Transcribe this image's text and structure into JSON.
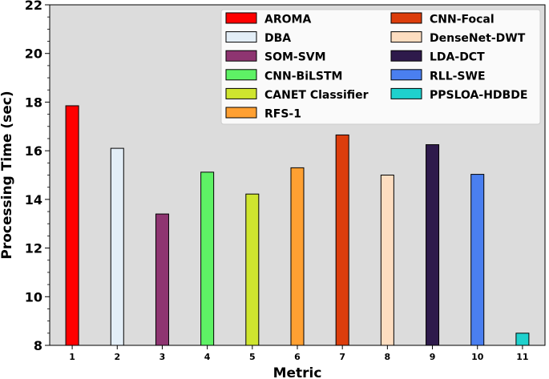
{
  "chart_data": {
    "type": "bar",
    "xlabel": "Metric",
    "ylabel": "Processing Time (sec)",
    "categories": [
      "1",
      "2",
      "3",
      "4",
      "5",
      "6",
      "7",
      "8",
      "9",
      "10",
      "11"
    ],
    "series": [
      {
        "name": "AROMA",
        "category": "1",
        "value": 17.85,
        "color": "#ff0000"
      },
      {
        "name": "DBA",
        "category": "2",
        "value": 16.1,
        "color": "#e3eef7"
      },
      {
        "name": "SOM-SVM",
        "category": "3",
        "value": 13.4,
        "color": "#8e3571"
      },
      {
        "name": "CNN-BiLSTM",
        "category": "4",
        "value": 15.12,
        "color": "#5ef265"
      },
      {
        "name": "CANET Classifier",
        "category": "5",
        "value": 14.22,
        "color": "#cfe52f"
      },
      {
        "name": "RFS-1",
        "category": "6",
        "value": 15.3,
        "color": "#ffa032"
      },
      {
        "name": "CNN-Focal",
        "category": "7",
        "value": 16.65,
        "color": "#dc3d0c"
      },
      {
        "name": "DenseNet-DWT",
        "category": "8",
        "value": 15.0,
        "color": "#fdddc0"
      },
      {
        "name": "LDA-DCT",
        "category": "9",
        "value": 16.25,
        "color": "#2e1a4b"
      },
      {
        "name": "RLL-SWE",
        "category": "10",
        "value": 15.03,
        "color": "#4a7ff0"
      },
      {
        "name": "PPSLOA-HDBDE",
        "category": "11",
        "value": 8.5,
        "color": "#1fd1cd"
      }
    ],
    "ylim": [
      8,
      22
    ],
    "yticks": [
      8,
      10,
      12,
      14,
      16,
      18,
      20,
      22
    ],
    "grid": false,
    "legend": "top-right",
    "legend_columns": 2,
    "plot_background": "#dcdcdc"
  }
}
